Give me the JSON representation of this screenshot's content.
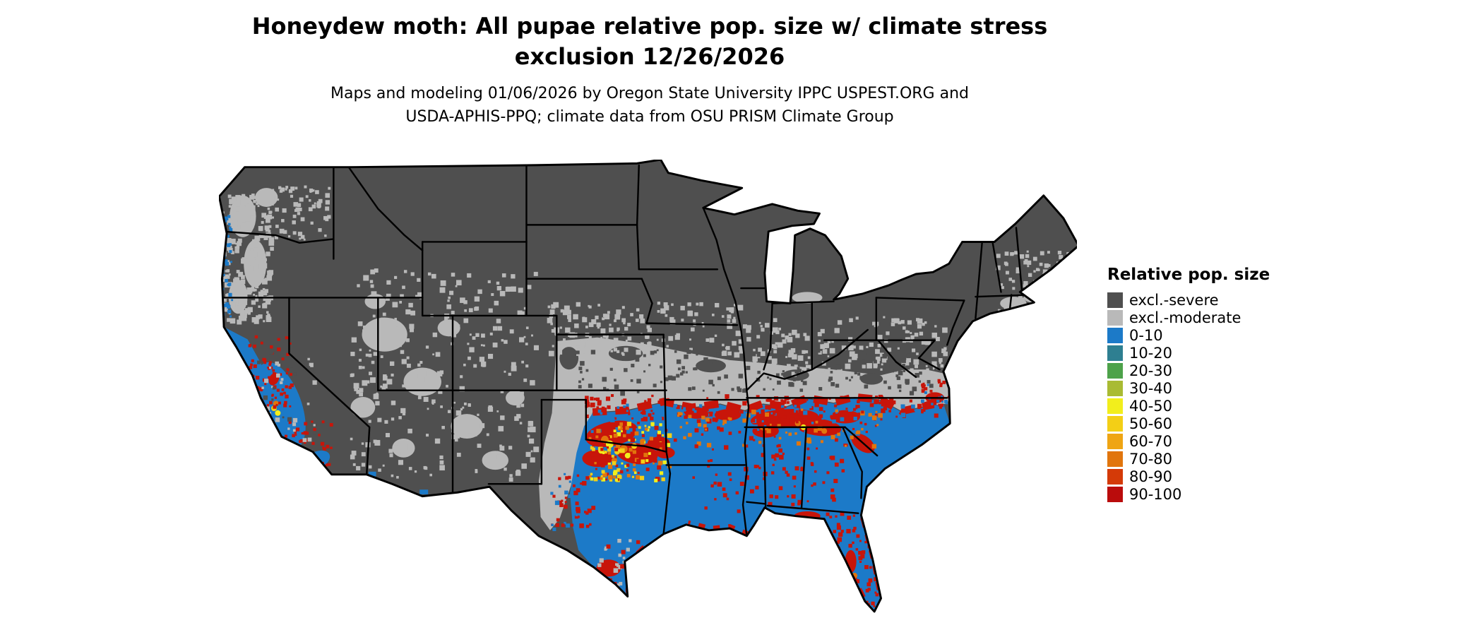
{
  "header": {
    "title_line1": "Honeydew moth: All pupae relative pop. size w/ climate stress",
    "title_line2": "exclusion 12/26/2026",
    "subtitle_line1": "Maps and modeling 01/06/2026 by Oregon State University IPPC USPEST.ORG and",
    "subtitle_line2": "USDA-APHIS-PPQ; climate data from OSU PRISM Climate Group"
  },
  "legend": {
    "title": "Relative pop. size",
    "items": [
      {
        "label": "excl.-severe",
        "color": "#4f4f4f"
      },
      {
        "label": "excl.-moderate",
        "color": "#b9b9b9"
      },
      {
        "label": "0-10",
        "color": "#1c7ac8"
      },
      {
        "label": "10-20",
        "color": "#2e7f91"
      },
      {
        "label": "20-30",
        "color": "#4da24a"
      },
      {
        "label": "30-40",
        "color": "#a9bb33"
      },
      {
        "label": "40-50",
        "color": "#f2ee1c"
      },
      {
        "label": "50-60",
        "color": "#f3cf16"
      },
      {
        "label": "60-70",
        "color": "#efa513"
      },
      {
        "label": "70-80",
        "color": "#e1750d"
      },
      {
        "label": "80-90",
        "color": "#d43a08"
      },
      {
        "label": "90-100",
        "color": "#ba0c0c"
      }
    ]
  },
  "map": {
    "region": "Contiguous United States",
    "colors": {
      "severe": "#4f4f4f",
      "moderate": "#b9b9b9",
      "blue": "#1c7ac8",
      "red": "#c8150a",
      "orange": "#e1750d",
      "gold": "#f3cf16",
      "yellow": "#f2ee1c",
      "water": "#ffffff",
      "border": "#000000"
    }
  }
}
